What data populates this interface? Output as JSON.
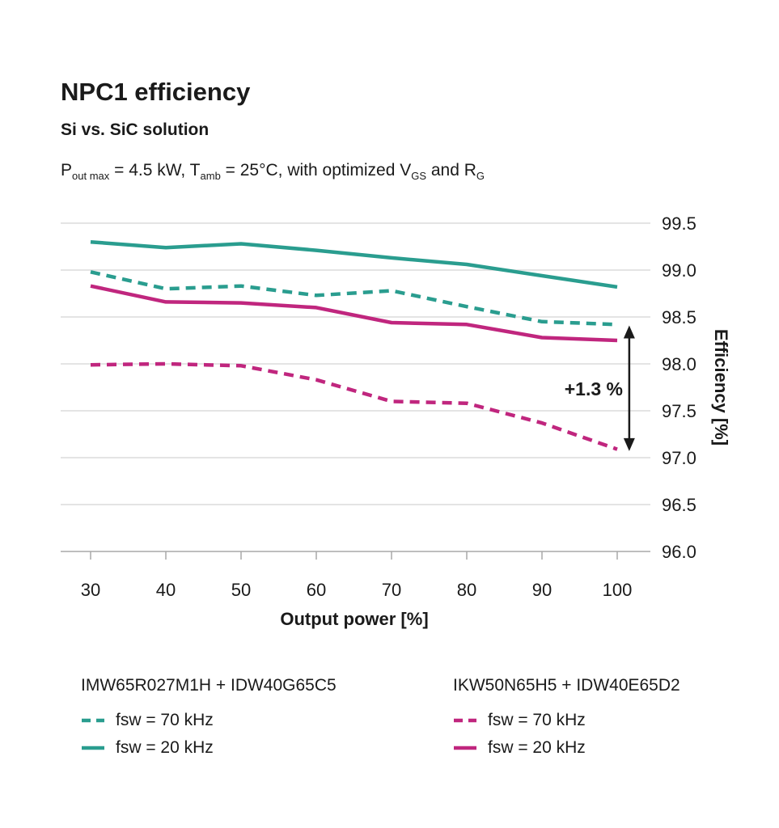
{
  "chart_data": {
    "type": "line",
    "title": "NPC1 efficiency",
    "subtitle": "Si vs. SiC solution",
    "conditions_segments": [
      {
        "text": "P"
      },
      {
        "sub": "out max"
      },
      {
        "text": " = 4.5 kW, T"
      },
      {
        "sub": "amb"
      },
      {
        "text": " = 25°C, with optimized V"
      },
      {
        "sub": "GS"
      },
      {
        "text": " and R"
      },
      {
        "sub": "G"
      }
    ],
    "x": [
      30,
      40,
      50,
      60,
      70,
      80,
      90,
      100
    ],
    "xlabel": "Output power [%]",
    "ylabel": "Efficiency [%]",
    "ylim": [
      96.0,
      99.5
    ],
    "ytick_step": 0.5,
    "grid": true,
    "legend_position": "bottom",
    "series": [
      {
        "name": "IMW65R027M1H + IDW40G65C5, fsw = 20 kHz",
        "device": "IMW65R027M1H + IDW40G65C5",
        "fsw": "20 kHz",
        "style": "solid",
        "color": "#2A9D8F",
        "values": [
          99.3,
          99.24,
          99.28,
          99.21,
          99.13,
          99.06,
          98.94,
          98.82
        ]
      },
      {
        "name": "IMW65R027M1H + IDW40G65C5, fsw = 70 kHz",
        "device": "IMW65R027M1H + IDW40G65C5",
        "fsw": "70 kHz",
        "style": "dashed",
        "color": "#2A9D8F",
        "values": [
          98.98,
          98.8,
          98.83,
          98.73,
          98.78,
          98.61,
          98.45,
          98.42
        ]
      },
      {
        "name": "IKW50N65H5 + IDW40E65D2, fsw = 20 kHz",
        "device": "IKW50N65H5 + IDW40E65D2",
        "fsw": "20 kHz",
        "style": "solid",
        "color": "#C0267E",
        "values": [
          98.83,
          98.66,
          98.65,
          98.6,
          98.44,
          98.42,
          98.28,
          98.25
        ]
      },
      {
        "name": "IKW50N65H5 + IDW40E65D2, fsw = 70 kHz",
        "device": "IKW50N65H5 + IDW40E65D2",
        "fsw": "70 kHz",
        "style": "dashed",
        "color": "#C0267E",
        "values": [
          97.99,
          98.0,
          97.98,
          97.83,
          97.6,
          97.58,
          97.37,
          97.09
        ]
      }
    ],
    "annotation": {
      "label": "+1.3 %",
      "x": 101.6,
      "y_from": 97.07,
      "y_to": 98.41
    }
  },
  "legend": {
    "groups": [
      {
        "title": "IMW65R027M1H + IDW40G65C5",
        "color": "#2A9D8F",
        "items": [
          {
            "label": "fsw = 70 kHz",
            "style": "dashed"
          },
          {
            "label": "fsw = 20 kHz",
            "style": "solid"
          }
        ]
      },
      {
        "title": "IKW50N65H5 + IDW40E65D2",
        "color": "#C0267E",
        "items": [
          {
            "label": "fsw = 70 kHz",
            "style": "dashed"
          },
          {
            "label": "fsw = 20 kHz",
            "style": "solid"
          }
        ]
      }
    ]
  },
  "colors": {
    "sic_teal": "#2A9D8F",
    "si_magenta": "#C0267E",
    "grid": "#DCDCDC",
    "axis": "#A8A8A8",
    "text": "#1A1A1A"
  }
}
